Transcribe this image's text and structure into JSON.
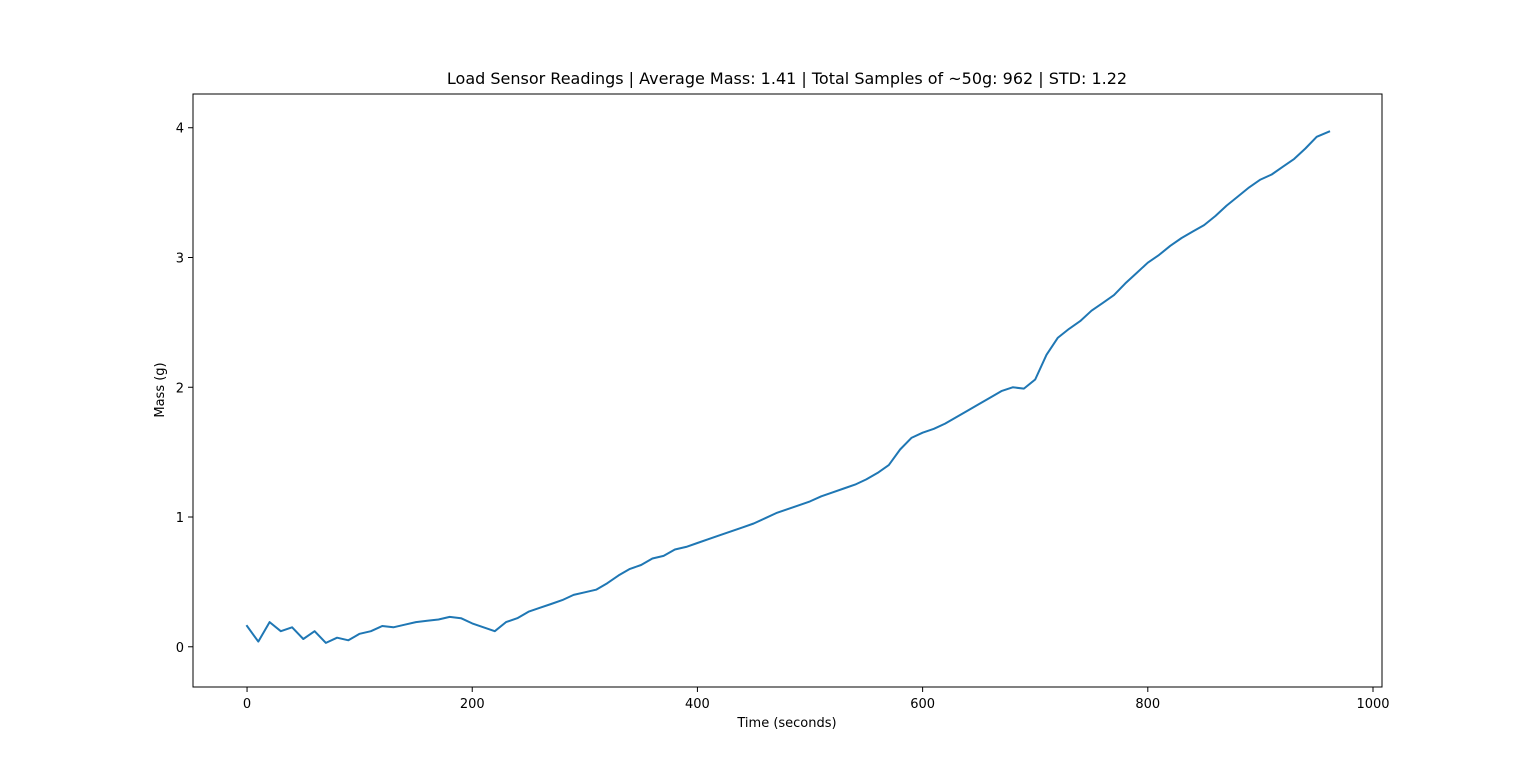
{
  "chart_data": {
    "type": "line",
    "title": "Load Sensor Readings  | Average Mass: 1.41 | Total Samples of ~50g: 962 | STD: 1.22",
    "xlabel": "Time (seconds)",
    "ylabel": "Mass (g)",
    "xlim": [
      -48,
      1008
    ],
    "ylim": [
      -0.31,
      4.26
    ],
    "x_ticks": [
      0,
      200,
      400,
      600,
      800,
      1000
    ],
    "y_ticks": [
      0,
      1,
      2,
      3,
      4
    ],
    "x_tick_labels": [
      "0",
      "200",
      "400",
      "600",
      "800",
      "1000"
    ],
    "y_tick_labels": [
      "0",
      "1",
      "2",
      "3",
      "4"
    ],
    "grid": false,
    "series": [
      {
        "color": "#1f77b4",
        "x": [
          0,
          10,
          20,
          30,
          40,
          50,
          60,
          70,
          80,
          90,
          100,
          110,
          120,
          130,
          140,
          150,
          160,
          170,
          180,
          190,
          200,
          210,
          220,
          230,
          240,
          250,
          260,
          270,
          280,
          290,
          300,
          310,
          320,
          330,
          340,
          350,
          360,
          370,
          380,
          390,
          400,
          410,
          420,
          430,
          440,
          450,
          460,
          470,
          480,
          490,
          500,
          510,
          520,
          530,
          540,
          550,
          560,
          570,
          580,
          590,
          600,
          610,
          620,
          630,
          640,
          650,
          660,
          670,
          680,
          690,
          700,
          710,
          720,
          730,
          740,
          750,
          760,
          770,
          780,
          790,
          800,
          810,
          820,
          830,
          840,
          850,
          860,
          870,
          880,
          890,
          900,
          910,
          920,
          930,
          940,
          950,
          961
        ],
        "y": [
          0.16,
          0.04,
          0.19,
          0.12,
          0.15,
          0.06,
          0.12,
          0.03,
          0.07,
          0.05,
          0.1,
          0.12,
          0.16,
          0.15,
          0.17,
          0.19,
          0.2,
          0.21,
          0.23,
          0.22,
          0.18,
          0.15,
          0.12,
          0.19,
          0.22,
          0.27,
          0.3,
          0.33,
          0.36,
          0.4,
          0.42,
          0.44,
          0.49,
          0.55,
          0.6,
          0.63,
          0.68,
          0.7,
          0.75,
          0.77,
          0.8,
          0.83,
          0.86,
          0.89,
          0.92,
          0.95,
          0.99,
          1.03,
          1.06,
          1.09,
          1.12,
          1.16,
          1.19,
          1.22,
          1.25,
          1.29,
          1.34,
          1.4,
          1.52,
          1.61,
          1.65,
          1.68,
          1.72,
          1.77,
          1.82,
          1.87,
          1.92,
          1.97,
          2.0,
          1.99,
          2.06,
          2.25,
          2.38,
          2.45,
          2.51,
          2.59,
          2.65,
          2.71,
          2.8,
          2.88,
          2.96,
          3.02,
          3.09,
          3.15,
          3.2,
          3.25,
          3.32,
          3.4,
          3.47,
          3.54,
          3.6,
          3.64,
          3.7,
          3.76,
          3.84,
          3.93,
          3.97
        ]
      }
    ]
  }
}
